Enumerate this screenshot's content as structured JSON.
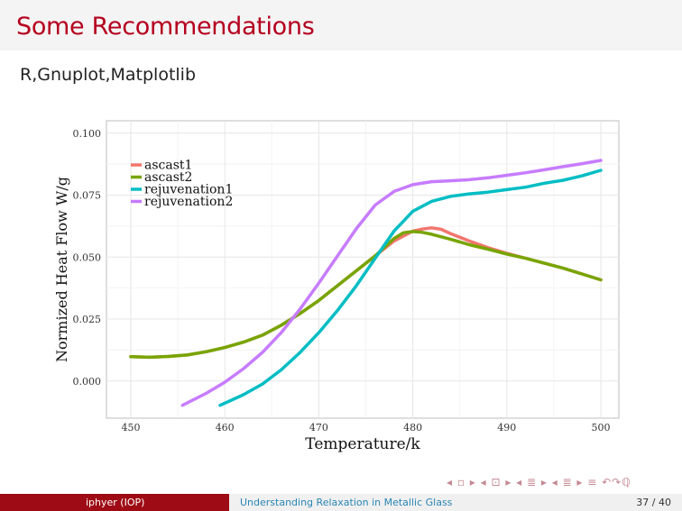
{
  "slide": {
    "title": "Some Recommendations",
    "subtitle": "R,Gnuplot,Matplotlib"
  },
  "nav_symbols": "◂ ▫ ▸ ◂ ⊡ ▸ ◂ ≣ ▸ ◂ ≣ ▸   ≡   ↶↷ℚ",
  "footer": {
    "author": "iphyer (IOP)",
    "talk_title": "Understanding Relaxation in Metallic Glass",
    "page": "37 / 40"
  },
  "colors": {
    "title": "#b5001e",
    "footer_left_bg": "#9e0b14",
    "ascast1": "#f2766e",
    "ascast2": "#77a500",
    "rejuvenation1": "#00bdc4",
    "rejuvenation2": "#c77cff"
  },
  "chart_data": {
    "type": "line",
    "xlabel": "Temperature/k",
    "ylabel": "Normized Heat Flow W/g",
    "xlim": [
      450,
      500
    ],
    "ylim": [
      -0.015,
      0.105
    ],
    "x_ticks": [
      450,
      460,
      470,
      480,
      490,
      500
    ],
    "x_tick_labels": [
      "450",
      "460",
      "470",
      "480",
      "490",
      "500"
    ],
    "y_ticks": [
      0.0,
      0.025,
      0.05,
      0.075,
      0.1
    ],
    "y_tick_labels": [
      "0.000",
      "0.025",
      "0.050",
      "0.075",
      "0.100"
    ],
    "grid": true,
    "legend_position": "top-left",
    "series": [
      {
        "name": "ascast1",
        "color": "#f2766e",
        "x": [
          450,
          452,
          454,
          456,
          458,
          460,
          462,
          464,
          466,
          468,
          470,
          472,
          474,
          476,
          478,
          480,
          481,
          482,
          483,
          484,
          486,
          488,
          490,
          492,
          494,
          496,
          498,
          500
        ],
        "y": [
          0.0098,
          0.0096,
          0.0099,
          0.0105,
          0.0118,
          0.0135,
          0.0157,
          0.0185,
          0.0225,
          0.0272,
          0.0325,
          0.0385,
          0.0445,
          0.0505,
          0.0565,
          0.0605,
          0.0613,
          0.0618,
          0.0612,
          0.0595,
          0.0565,
          0.0538,
          0.0515,
          0.0495,
          0.0475,
          0.0455,
          0.0432,
          0.0408
        ]
      },
      {
        "name": "ascast2",
        "color": "#77a500",
        "x": [
          450,
          452,
          454,
          456,
          458,
          460,
          462,
          464,
          466,
          468,
          470,
          472,
          474,
          476,
          478,
          479,
          480,
          481,
          482,
          484,
          486,
          488,
          490,
          492,
          494,
          496,
          498,
          500
        ],
        "y": [
          0.0098,
          0.0096,
          0.0099,
          0.0105,
          0.0118,
          0.0135,
          0.0157,
          0.0185,
          0.0225,
          0.0272,
          0.0325,
          0.0385,
          0.0445,
          0.0505,
          0.0575,
          0.0598,
          0.0603,
          0.06,
          0.0592,
          0.0572,
          0.055,
          0.0532,
          0.0512,
          0.0495,
          0.0475,
          0.0455,
          0.0432,
          0.0408
        ]
      },
      {
        "name": "rejuvenation1",
        "color": "#00bdc4",
        "x": [
          459.5,
          462,
          464,
          466,
          468,
          470,
          472,
          474,
          476,
          478,
          480,
          482,
          484,
          486,
          488,
          490,
          492,
          494,
          496,
          498,
          500
        ],
        "y": [
          -0.0098,
          -0.0055,
          -0.0012,
          0.0045,
          0.0115,
          0.0195,
          0.0285,
          0.0385,
          0.0495,
          0.0605,
          0.0685,
          0.0725,
          0.0745,
          0.0755,
          0.0762,
          0.0772,
          0.0782,
          0.0798,
          0.081,
          0.0828,
          0.085
        ]
      },
      {
        "name": "rejuvenation2",
        "color": "#c77cff",
        "x": [
          455.5,
          458,
          460,
          462,
          464,
          466,
          468,
          470,
          472,
          474,
          476,
          478,
          480,
          482,
          484,
          486,
          488,
          490,
          492,
          494,
          496,
          498,
          500
        ],
        "y": [
          -0.0098,
          -0.005,
          -0.0005,
          0.005,
          0.0115,
          0.0195,
          0.029,
          0.0395,
          0.0505,
          0.0615,
          0.071,
          0.0765,
          0.0792,
          0.0804,
          0.0808,
          0.0812,
          0.082,
          0.083,
          0.084,
          0.0852,
          0.0865,
          0.0877,
          0.089
        ]
      }
    ]
  }
}
